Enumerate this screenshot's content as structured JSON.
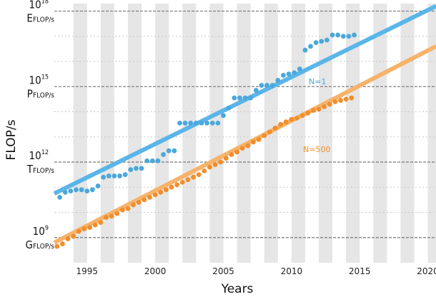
{
  "chart_data": {
    "type": "scatter",
    "title": "",
    "xlabel": "Years",
    "ylabel": "FLOP/s",
    "xlim": [
      1992.6,
      2020.6
    ],
    "ylim_log10": [
      8,
      18.3
    ],
    "y_scale": "log",
    "x_ticks": [
      "1995",
      "2000",
      "2005",
      "2010",
      "2015",
      "2020"
    ],
    "y_ticks": [
      {
        "power": "9",
        "prefix": "G",
        "unit": "FLOP/s",
        "value": 1000000000.0
      },
      {
        "power": "12",
        "prefix": "T",
        "unit": "FLOP/s",
        "value": 1000000000000.0
      },
      {
        "power": "15",
        "prefix": "P",
        "unit": "FLOP/s",
        "value": 1000000000000000.0
      },
      {
        "power": "18",
        "prefix": "E",
        "unit": "FLOP/s",
        "value": 1e+18
      }
    ],
    "tick_base": "10",
    "vertical_bands": "alternate years shaded grey",
    "series": [
      {
        "name": "N=1",
        "color": "#4AA8DC",
        "trend_color": "#5BB5E8",
        "trend": {
          "x": [
            1992.6,
            2020.6
          ],
          "log10_y": [
            10.75,
            18.2
          ]
        },
        "points": [
          [
            1993.0,
            10.6
          ],
          [
            1993.4,
            10.8
          ],
          [
            1993.8,
            10.85
          ],
          [
            1994.2,
            10.9
          ],
          [
            1994.6,
            10.9
          ],
          [
            1995.0,
            10.85
          ],
          [
            1995.4,
            10.9
          ],
          [
            1995.8,
            11.05
          ],
          [
            1996.2,
            11.4
          ],
          [
            1996.6,
            11.45
          ],
          [
            1997.0,
            11.45
          ],
          [
            1997.4,
            11.45
          ],
          [
            1997.8,
            11.5
          ],
          [
            1998.2,
            11.7
          ],
          [
            1998.6,
            11.75
          ],
          [
            1999.0,
            11.75
          ],
          [
            1999.4,
            12.05
          ],
          [
            1999.8,
            12.05
          ],
          [
            2000.2,
            12.05
          ],
          [
            2000.6,
            12.3
          ],
          [
            2001.0,
            12.45
          ],
          [
            2001.4,
            12.45
          ],
          [
            2001.8,
            13.55
          ],
          [
            2002.2,
            13.55
          ],
          [
            2002.6,
            13.55
          ],
          [
            2003.0,
            13.55
          ],
          [
            2003.4,
            13.55
          ],
          [
            2003.8,
            13.55
          ],
          [
            2004.2,
            13.55
          ],
          [
            2004.6,
            13.55
          ],
          [
            2005.0,
            13.85
          ],
          [
            2005.4,
            14.15
          ],
          [
            2005.8,
            14.55
          ],
          [
            2006.2,
            14.55
          ],
          [
            2006.6,
            14.55
          ],
          [
            2007.0,
            14.55
          ],
          [
            2007.4,
            14.85
          ],
          [
            2007.8,
            15.05
          ],
          [
            2008.2,
            15.05
          ],
          [
            2008.6,
            15.05
          ],
          [
            2009.0,
            15.25
          ],
          [
            2009.4,
            15.45
          ],
          [
            2009.8,
            15.5
          ],
          [
            2010.2,
            15.55
          ],
          [
            2010.6,
            15.7
          ],
          [
            2011.0,
            16.45
          ],
          [
            2011.4,
            16.6
          ],
          [
            2011.8,
            16.75
          ],
          [
            2012.2,
            16.8
          ],
          [
            2012.6,
            16.85
          ],
          [
            2013.0,
            17.05
          ],
          [
            2013.4,
            17.05
          ],
          [
            2013.8,
            17.0
          ],
          [
            2014.2,
            17.0
          ],
          [
            2014.6,
            17.05
          ]
        ]
      },
      {
        "name": "N=500",
        "color": "#F28E2B",
        "trend_color": "#F6B36B",
        "trend": {
          "x": [
            1992.6,
            2020.6
          ],
          "log10_y": [
            8.8,
            16.6
          ]
        },
        "points": [
          [
            1992.8,
            8.65
          ],
          [
            1993.2,
            8.75
          ],
          [
            1993.6,
            8.95
          ],
          [
            1994.0,
            9.05
          ],
          [
            1994.4,
            9.25
          ],
          [
            1994.8,
            9.35
          ],
          [
            1995.2,
            9.4
          ],
          [
            1995.6,
            9.5
          ],
          [
            1996.0,
            9.6
          ],
          [
            1996.4,
            9.8
          ],
          [
            1996.8,
            9.85
          ],
          [
            1997.2,
            9.95
          ],
          [
            1997.6,
            10.1
          ],
          [
            1998.0,
            10.15
          ],
          [
            1998.4,
            10.3
          ],
          [
            1998.8,
            10.4
          ],
          [
            1999.2,
            10.5
          ],
          [
            1999.6,
            10.6
          ],
          [
            2000.0,
            10.7
          ],
          [
            2000.4,
            10.8
          ],
          [
            2000.8,
            10.9
          ],
          [
            2001.2,
            11.0
          ],
          [
            2001.6,
            11.1
          ],
          [
            2002.0,
            11.2
          ],
          [
            2002.4,
            11.3
          ],
          [
            2002.8,
            11.4
          ],
          [
            2003.2,
            11.5
          ],
          [
            2003.6,
            11.65
          ],
          [
            2004.0,
            11.8
          ],
          [
            2004.4,
            11.9
          ],
          [
            2004.8,
            12.0
          ],
          [
            2005.2,
            12.15
          ],
          [
            2005.6,
            12.3
          ],
          [
            2006.0,
            12.4
          ],
          [
            2006.4,
            12.55
          ],
          [
            2006.8,
            12.65
          ],
          [
            2007.2,
            12.8
          ],
          [
            2007.6,
            12.9
          ],
          [
            2008.0,
            13.05
          ],
          [
            2008.4,
            13.2
          ],
          [
            2008.8,
            13.35
          ],
          [
            2009.2,
            13.5
          ],
          [
            2009.6,
            13.6
          ],
          [
            2010.0,
            13.7
          ],
          [
            2010.4,
            13.75
          ],
          [
            2010.8,
            13.85
          ],
          [
            2011.2,
            13.95
          ],
          [
            2011.6,
            14.05
          ],
          [
            2012.0,
            14.1
          ],
          [
            2012.4,
            14.2
          ],
          [
            2012.8,
            14.3
          ],
          [
            2013.2,
            14.4
          ],
          [
            2013.6,
            14.45
          ],
          [
            2014.0,
            14.5
          ],
          [
            2014.4,
            14.55
          ]
        ]
      }
    ]
  }
}
